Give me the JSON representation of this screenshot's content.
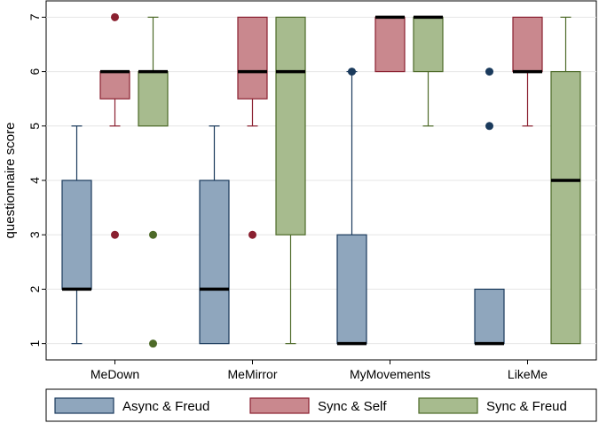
{
  "chart_data": {
    "type": "boxplot",
    "title": "",
    "xlabel": "",
    "ylabel": "questionnaire score",
    "ylim": [
      0.7,
      7.3
    ],
    "yticks": [
      1,
      2,
      3,
      4,
      5,
      6,
      7
    ],
    "categories": [
      "MeDown",
      "MeMirror",
      "MyMovements",
      "LikeMe"
    ],
    "legend_position": "bottom",
    "series": [
      {
        "name": "Async & Freud",
        "color": "#8fa6bd",
        "edge": "#1a3a5c",
        "boxes": [
          {
            "min": 1,
            "q1": 2,
            "median": 2,
            "q3": 4,
            "max": 5,
            "outliers": []
          },
          {
            "min": 1,
            "q1": 1,
            "median": 2,
            "q3": 4,
            "max": 5,
            "outliers": []
          },
          {
            "min": 1,
            "q1": 1,
            "median": 1,
            "q3": 3,
            "max": 6,
            "outliers": [
              6
            ]
          },
          {
            "min": 1,
            "q1": 1,
            "median": 1,
            "q3": 2,
            "max": 2,
            "outliers": [
              5,
              6
            ]
          }
        ]
      },
      {
        "name": "Sync & Self",
        "color": "#c9888e",
        "edge": "#8a2030",
        "boxes": [
          {
            "min": 5,
            "q1": 5.5,
            "median": 6,
            "q3": 6,
            "max": 6,
            "outliers": [
              3,
              7
            ]
          },
          {
            "min": 5,
            "q1": 5.5,
            "median": 6,
            "q3": 7,
            "max": 7,
            "outliers": [
              3
            ]
          },
          {
            "min": 6,
            "q1": 6,
            "median": 7,
            "q3": 7,
            "max": 7,
            "outliers": []
          },
          {
            "min": 5,
            "q1": 6,
            "median": 6,
            "q3": 7,
            "max": 7,
            "outliers": []
          }
        ]
      },
      {
        "name": "Sync & Freud",
        "color": "#a7bb8e",
        "edge": "#4d6a28",
        "boxes": [
          {
            "min": 5,
            "q1": 5,
            "median": 6,
            "q3": 6,
            "max": 7,
            "outliers": [
              1,
              3
            ]
          },
          {
            "min": 1,
            "q1": 3,
            "median": 6,
            "q3": 7,
            "max": 7,
            "outliers": []
          },
          {
            "min": 5,
            "q1": 6,
            "median": 7,
            "q3": 7,
            "max": 7,
            "outliers": []
          },
          {
            "min": 1,
            "q1": 1,
            "median": 4,
            "q3": 6,
            "max": 7,
            "outliers": []
          }
        ]
      }
    ]
  }
}
